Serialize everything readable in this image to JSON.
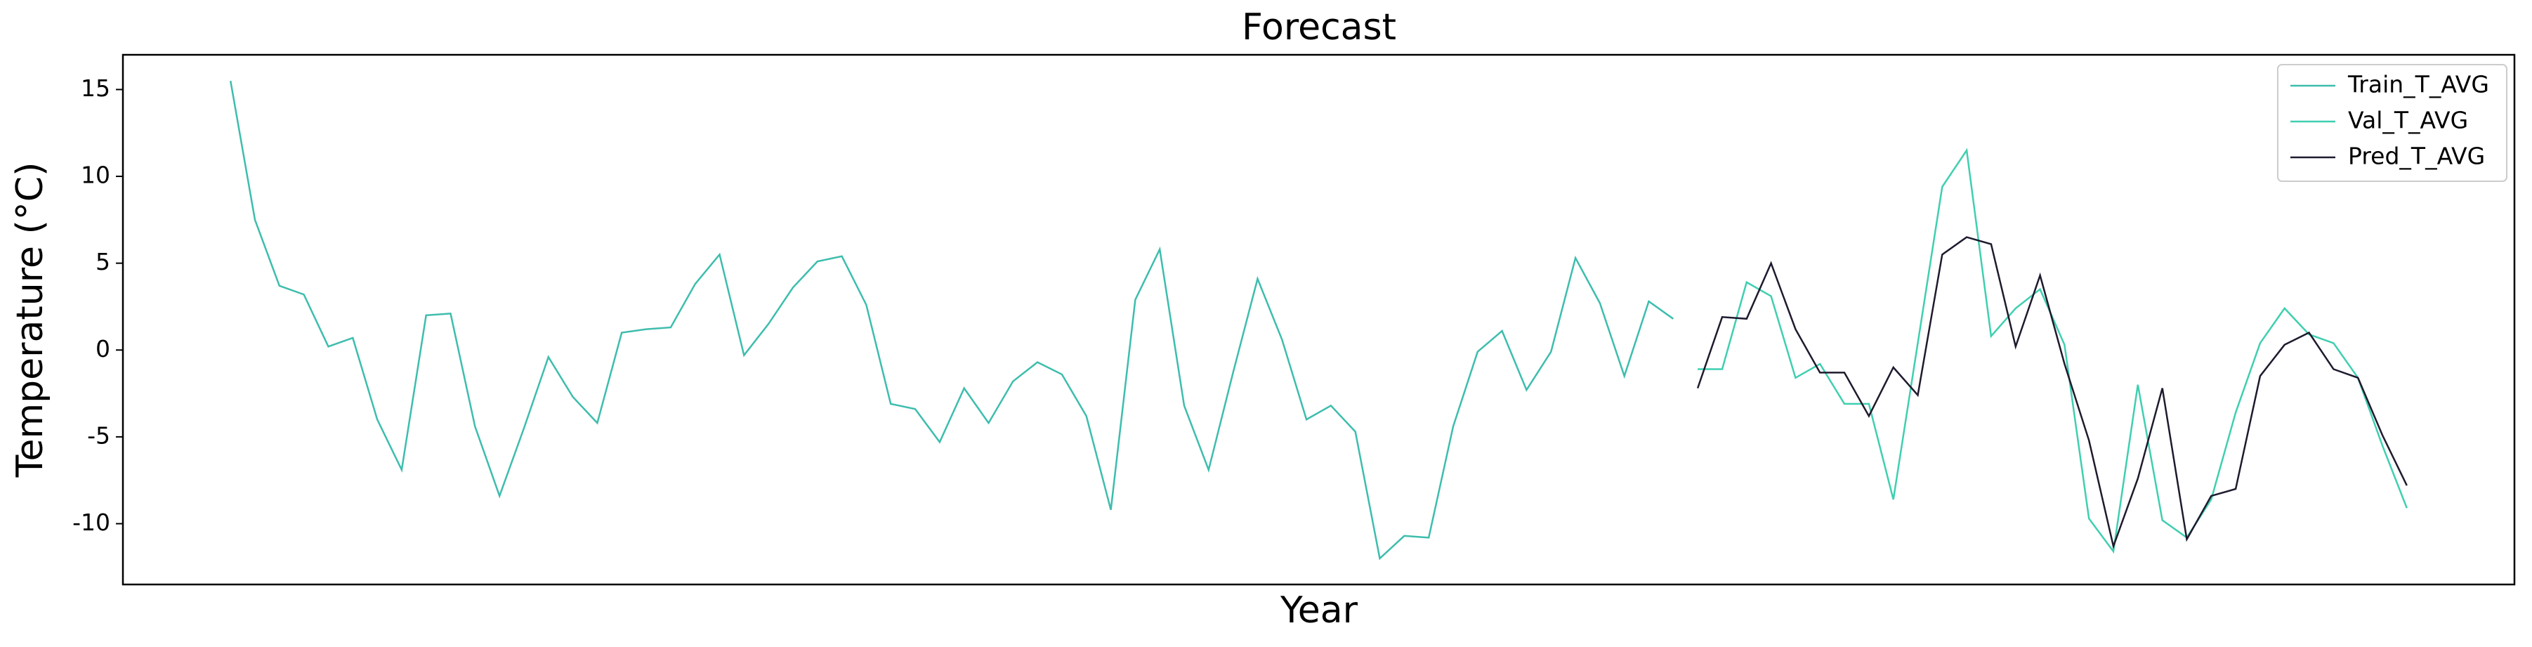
{
  "chart_data": {
    "type": "line",
    "title": "Forecast",
    "x_label": "Year",
    "y_label": "Temperature (°C)",
    "categories": [
      null,
      null,
      null,
      null,
      null,
      null,
      null,
      null,
      null,
      null,
      null,
      null,
      null,
      null,
      null,
      null,
      null,
      null,
      null,
      null,
      null,
      null,
      null,
      null,
      null,
      null,
      null,
      null,
      null,
      null,
      null,
      null,
      null,
      null,
      null,
      null,
      null,
      null,
      null,
      null,
      null,
      null,
      null,
      null,
      null,
      null,
      null,
      null,
      null,
      null,
      null,
      null,
      null,
      null,
      null,
      null,
      null,
      null,
      null,
      null,
      null,
      null,
      null,
      null,
      null,
      null,
      null,
      null,
      null,
      null,
      null,
      null,
      null,
      null,
      null,
      null,
      null,
      null,
      null,
      null,
      null,
      null,
      null,
      null,
      null,
      null,
      null,
      null,
      null,
      null
    ],
    "series": [
      {
        "name": "Train_T_AVG",
        "color": "#3dbdad",
        "values": [
          15.5,
          7.5,
          3.7,
          3.2,
          0.2,
          0.7,
          -4,
          -6.9,
          2.0,
          2.1,
          -4.4,
          -8.4,
          -4.5,
          -0.4,
          -2.7,
          -4.2,
          1.0,
          1.2,
          1.3,
          3.8,
          5.5,
          -0.3,
          1.5,
          3.6,
          5.1,
          5.4,
          2.6,
          -3.1,
          -3.4,
          -5.3,
          -2.2,
          -4.2,
          -1.8,
          -0.7,
          -1.4,
          -3.8,
          -9.2,
          2.9,
          5.8,
          -3.2,
          -6.9,
          -1.3,
          4.1,
          0.6,
          -4.0,
          -3.2,
          -4.7,
          -12.0,
          -10.7,
          -10.8,
          -4.4,
          -0.1,
          1.1,
          -2.3,
          -0.1,
          5.3,
          2.7,
          -1.5,
          2.8,
          1.8,
          null,
          null,
          null,
          null,
          null,
          null,
          null,
          null,
          null,
          null,
          null,
          null,
          null,
          null,
          null,
          null,
          null,
          null,
          null,
          null,
          null,
          null,
          null,
          null,
          null,
          null,
          null,
          null,
          null,
          null
        ]
      },
      {
        "name": "Val_T_AVG",
        "color": "#3fcfb0",
        "values": [
          null,
          null,
          null,
          null,
          null,
          null,
          null,
          null,
          null,
          null,
          null,
          null,
          null,
          null,
          null,
          null,
          null,
          null,
          null,
          null,
          null,
          null,
          null,
          null,
          null,
          null,
          null,
          null,
          null,
          null,
          null,
          null,
          null,
          null,
          null,
          null,
          null,
          null,
          null,
          null,
          null,
          null,
          null,
          null,
          null,
          null,
          null,
          null,
          null,
          null,
          null,
          null,
          null,
          null,
          null,
          null,
          null,
          null,
          null,
          null,
          -1.1,
          -1.1,
          3.9,
          3.1,
          -1.6,
          -0.8,
          -3.1,
          -3.1,
          -8.6,
          0.4,
          9.4,
          11.5,
          0.8,
          2.4,
          3.5,
          0.3,
          -9.7,
          -11.6,
          -2.0,
          -9.8,
          -10.8,
          -8.6,
          -3.6,
          0.4,
          2.4,
          0.9,
          0.4,
          -1.6,
          -5.5,
          -9.1
        ]
      },
      {
        "name": "Pred_T_AVG",
        "color": "#1f1a2e",
        "values": [
          null,
          null,
          null,
          null,
          null,
          null,
          null,
          null,
          null,
          null,
          null,
          null,
          null,
          null,
          null,
          null,
          null,
          null,
          null,
          null,
          null,
          null,
          null,
          null,
          null,
          null,
          null,
          null,
          null,
          null,
          null,
          null,
          null,
          null,
          null,
          null,
          null,
          null,
          null,
          null,
          null,
          null,
          null,
          null,
          null,
          null,
          null,
          null,
          null,
          null,
          null,
          null,
          null,
          null,
          null,
          null,
          null,
          null,
          null,
          null,
          -2.2,
          1.9,
          1.8,
          5.0,
          1.2,
          -1.3,
          -1.3,
          -3.8,
          -1.0,
          -2.6,
          5.5,
          6.5,
          6.1,
          0.2,
          4.3,
          -0.8,
          -5.2,
          -11.3,
          -7.4,
          -2.2,
          -10.9,
          -8.4,
          -8.0,
          -1.5,
          0.3,
          1.0,
          -1.1,
          -1.6,
          -4.9,
          -7.8
        ]
      }
    ],
    "ylim": [
      -13.5,
      17
    ],
    "yticks": [
      -10,
      -5,
      0,
      5,
      10,
      15
    ],
    "grid": false,
    "legend": "upper right"
  }
}
